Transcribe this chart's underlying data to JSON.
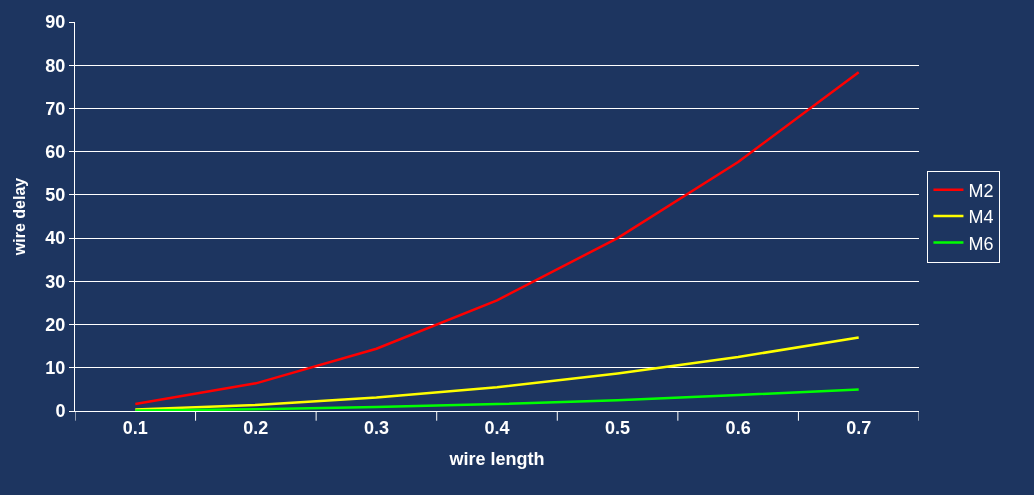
{
  "chart_data": {
    "type": "line",
    "xlabel": "wire length",
    "ylabel": "wire delay",
    "categories": [
      "0.1",
      "0.2",
      "0.3",
      "0.4",
      "0.5",
      "0.6",
      "0.7"
    ],
    "series": [
      {
        "name": "M2",
        "color": "#ff0000",
        "values": [
          1.6,
          6.4,
          14.4,
          25.6,
          40,
          57.6,
          78.4
        ]
      },
      {
        "name": "M4",
        "color": "#ffff00",
        "values": [
          0.35,
          1.4,
          3.1,
          5.5,
          8.7,
          12.5,
          17
        ]
      },
      {
        "name": "M6",
        "color": "#00ff00",
        "values": [
          0.1,
          0.4,
          0.9,
          1.6,
          2.5,
          3.7,
          5.0
        ]
      }
    ],
    "ylim": [
      0,
      90
    ],
    "yticks": [
      0,
      10,
      20,
      30,
      40,
      50,
      60,
      70,
      80,
      90
    ],
    "grid": "y",
    "legend": "right",
    "marker": "none",
    "line_style": "solid"
  }
}
